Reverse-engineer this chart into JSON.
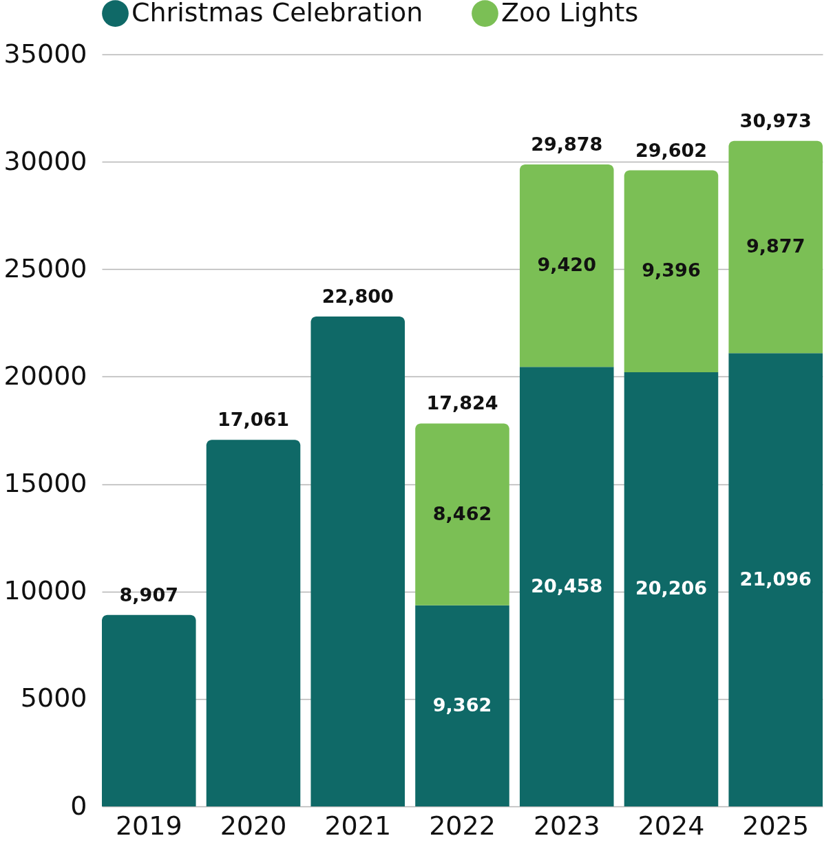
{
  "chart_data": {
    "type": "bar",
    "stacked": true,
    "categories": [
      "2019",
      "2020",
      "2021",
      "2022",
      "2023",
      "2024",
      "2025"
    ],
    "series": [
      {
        "name": "Christmas Celebration",
        "color": "#0f6967",
        "values": [
          8907,
          17061,
          22800,
          9362,
          20458,
          20206,
          21096
        ],
        "value_labels": [
          null,
          null,
          null,
          "9,362",
          "20,458",
          "20,206",
          "21,096"
        ]
      },
      {
        "name": "Zoo Lights",
        "color": "#7bbf55",
        "values": [
          null,
          null,
          null,
          8462,
          9420,
          9396,
          9877
        ],
        "value_labels": [
          null,
          null,
          null,
          "8,462",
          "9,420",
          "9,396",
          "9,877"
        ]
      }
    ],
    "totals": [
      "8,907",
      "17,061",
      "22,800",
      "17,824",
      "29,878",
      "29,602",
      "30,973"
    ],
    "ylim": [
      0,
      35000
    ],
    "yticks": [
      0,
      5000,
      10000,
      15000,
      20000,
      25000,
      30000,
      35000
    ],
    "grid": "y",
    "legend": "top"
  }
}
